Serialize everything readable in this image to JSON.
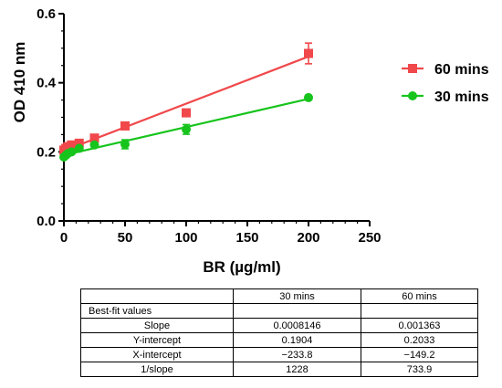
{
  "chart_data": {
    "type": "scatter",
    "xlabel": "BR (µg/ml)",
    "ylabel": "OD 410 nm",
    "xlim": [
      0,
      250
    ],
    "ylim": [
      0,
      0.6
    ],
    "x_ticks": [
      "0",
      "50",
      "100",
      "150",
      "200",
      "250"
    ],
    "y_ticks": [
      "0.0",
      "0.2",
      "0.4",
      "0.6"
    ],
    "x_minor_step": 10,
    "y_minor_step": 0.05,
    "grid": false,
    "legend_position": "right",
    "series": [
      {
        "name": "60 mins",
        "color": "#f0484b",
        "marker": "square",
        "x": [
          0,
          1.6,
          3.1,
          6.25,
          12.5,
          25,
          50,
          100,
          200
        ],
        "y": [
          0.205,
          0.21,
          0.215,
          0.22,
          0.225,
          0.24,
          0.275,
          0.313,
          0.485
        ],
        "err": [
          0.006,
          0.006,
          0.005,
          0.005,
          0.005,
          0.004,
          0.006,
          0.004,
          0.03
        ],
        "fit": {
          "slope": 0.001363,
          "intercept": 0.2033
        }
      },
      {
        "name": "30 mins",
        "color": "#17c41c",
        "marker": "circle",
        "x": [
          0,
          1.6,
          3.1,
          6.25,
          12.5,
          25,
          50,
          100,
          200
        ],
        "y": [
          0.185,
          0.19,
          0.195,
          0.2,
          0.21,
          0.22,
          0.222,
          0.265,
          0.357
        ],
        "err": [
          0.005,
          0.005,
          0.005,
          0.005,
          0.005,
          0.004,
          0.013,
          0.014,
          0.003
        ],
        "fit": {
          "slope": 0.0008146,
          "intercept": 0.1904
        }
      }
    ]
  },
  "table": {
    "header": [
      "",
      "30 mins",
      "60 mins"
    ],
    "section_label": "Best-fit values",
    "rows": [
      [
        "Slope",
        "0.0008146",
        "0.001363"
      ],
      [
        "Y-intercept",
        "0.1904",
        "0.2033"
      ],
      [
        "X-intercept",
        "−233.8",
        "−149.2"
      ],
      [
        "1/slope",
        "1228",
        "733.9"
      ]
    ]
  }
}
